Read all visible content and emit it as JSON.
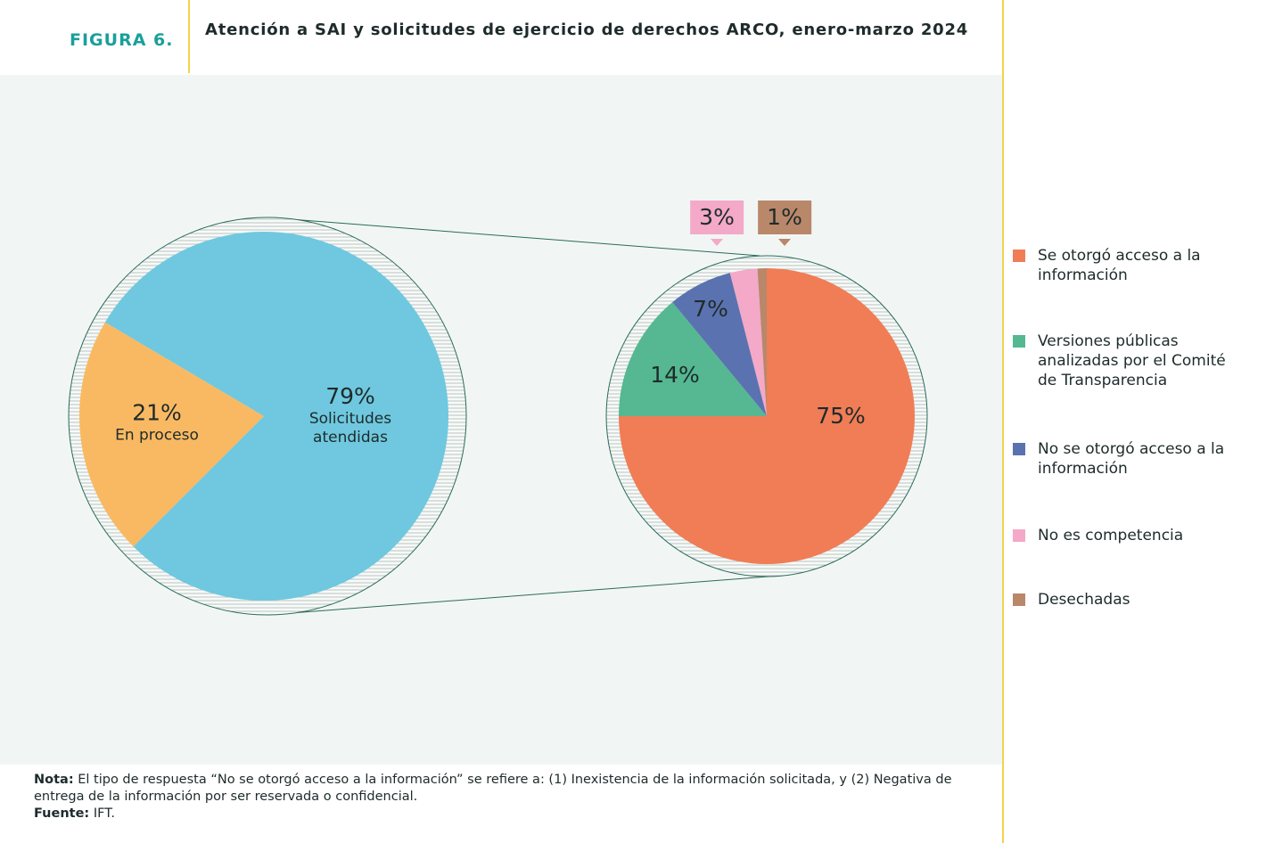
{
  "figure_label": "FIGURA 6.",
  "title": "Atención a SAI y solicitudes de ejercicio de derechos ARCO, enero-marzo 2024",
  "chart_data": [
    {
      "type": "pie",
      "categories": [
        "En proceso",
        "Solicitudes atendidas"
      ],
      "values": [
        21,
        79
      ],
      "value_labels": [
        "21%",
        "79%"
      ],
      "colors": [
        "#f9b963",
        "#6fc8df"
      ]
    },
    {
      "type": "pie",
      "categories": [
        "Se otorgó acceso a la información",
        "Versiones públicas analizadas por el Comité de Transparencia",
        "No se otorgó acceso a la información",
        "No es competencia",
        "Desechadas"
      ],
      "values": [
        75,
        14,
        7,
        3,
        1
      ],
      "value_labels": [
        "75%",
        "14%",
        "7%",
        "3%",
        "1%"
      ],
      "colors": [
        "#f07d56",
        "#55b892",
        "#5b72b0",
        "#f3a9c7",
        "#b9876a"
      ],
      "legend": "right"
    }
  ],
  "note": {
    "label": "Nota:",
    "text": "El tipo de respuesta “No se otorgó acceso a la información” se refiere a: (1) Inexistencia de la información solicitada, y (2) Negativa de entrega de la información por ser reservada o confidencial."
  },
  "source": {
    "label": "Fuente:",
    "text": "IFT."
  }
}
